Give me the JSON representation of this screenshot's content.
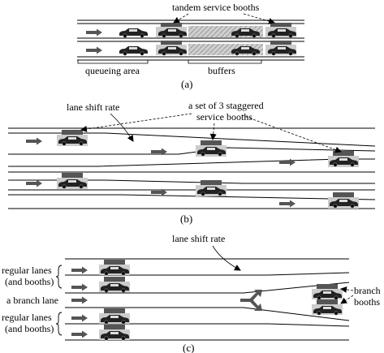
{
  "panel_a": {
    "label_top": "tandem service booths",
    "label_queue": "queueing area",
    "label_buffers": "buffers",
    "caption": "(a)"
  },
  "panel_b": {
    "label_shift": "lane shift rate",
    "label_booths_line1": "a set of 3 staggered",
    "label_booths_line2": "service booths",
    "caption": "(b)"
  },
  "panel_c": {
    "label_shift": "lane shift rate",
    "label_regular_top_1": "regular lanes",
    "label_regular_top_2": "(and booths)",
    "label_branch_lane": "a branch lane",
    "label_regular_bottom_1": "regular lanes",
    "label_regular_bottom_2": "(and booths)",
    "label_branch_booths_1": "branch",
    "label_branch_booths_2": "booths",
    "caption": "(c)"
  }
}
